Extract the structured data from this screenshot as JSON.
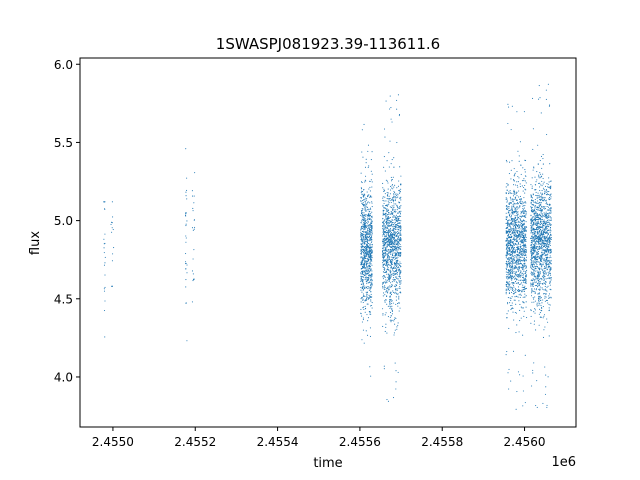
{
  "chart_data": {
    "type": "scatter",
    "title": "1SWASPJ081923.39-113611.6",
    "xlabel": "time",
    "ylabel": "flux",
    "x_offset_label": "1e6",
    "xlim": [
      2454870,
      2456075
    ],
    "ylim": [
      3.68,
      6.04
    ],
    "xticks": [
      2454950,
      2455150,
      2455350,
      2455550,
      2455750,
      2455950
    ],
    "xtick_labels": [
      "2.4550",
      "2.4552",
      "2.4554",
      "2.4556",
      "2.4558",
      "2.4560"
    ],
    "yticks": [
      4.0,
      4.5,
      5.0,
      5.5,
      6.0
    ],
    "ytick_labels": [
      "4.0",
      "4.5",
      "5.0",
      "5.5",
      "6.0"
    ],
    "grid": false,
    "marker_color": "#1f77b4",
    "series": [
      {
        "clusters": [
          {
            "x_range": [
              2454928,
              2454932
            ],
            "y_mean": 4.85,
            "y_sd": 0.28,
            "y_range": [
              3.8,
              5.12
            ],
            "count": 22
          },
          {
            "x_range": [
              2454945,
              2454953
            ],
            "y_mean": 4.85,
            "y_sd": 0.2,
            "y_range": [
              4.58,
              5.12
            ],
            "count": 14
          },
          {
            "x_range": [
              2455126,
              2455130
            ],
            "y_mean": 4.85,
            "y_sd": 0.32,
            "y_range": [
              4.06,
              5.46
            ],
            "count": 30
          },
          {
            "x_range": [
              2455143,
              2455150
            ],
            "y_mean": 4.9,
            "y_sd": 0.3,
            "y_range": [
              4.48,
              5.54
            ],
            "count": 22
          },
          {
            "x_range": [
              2455552,
              2455580
            ],
            "y_mean": 4.82,
            "y_sd": 0.2,
            "y_range": [
              4.0,
              5.7
            ],
            "count": 900
          },
          {
            "x_range": [
              2455605,
              2455650
            ],
            "y_mean": 4.84,
            "y_sd": 0.2,
            "y_range": [
              3.82,
              5.85
            ],
            "count": 1200
          },
          {
            "x_range": [
              2455905,
              2455955
            ],
            "y_mean": 4.84,
            "y_sd": 0.2,
            "y_range": [
              3.76,
              5.75
            ],
            "count": 1300
          },
          {
            "x_range": [
              2455965,
              2456015
            ],
            "y_mean": 4.86,
            "y_sd": 0.2,
            "y_range": [
              3.78,
              5.92
            ],
            "count": 1400
          }
        ]
      }
    ]
  }
}
